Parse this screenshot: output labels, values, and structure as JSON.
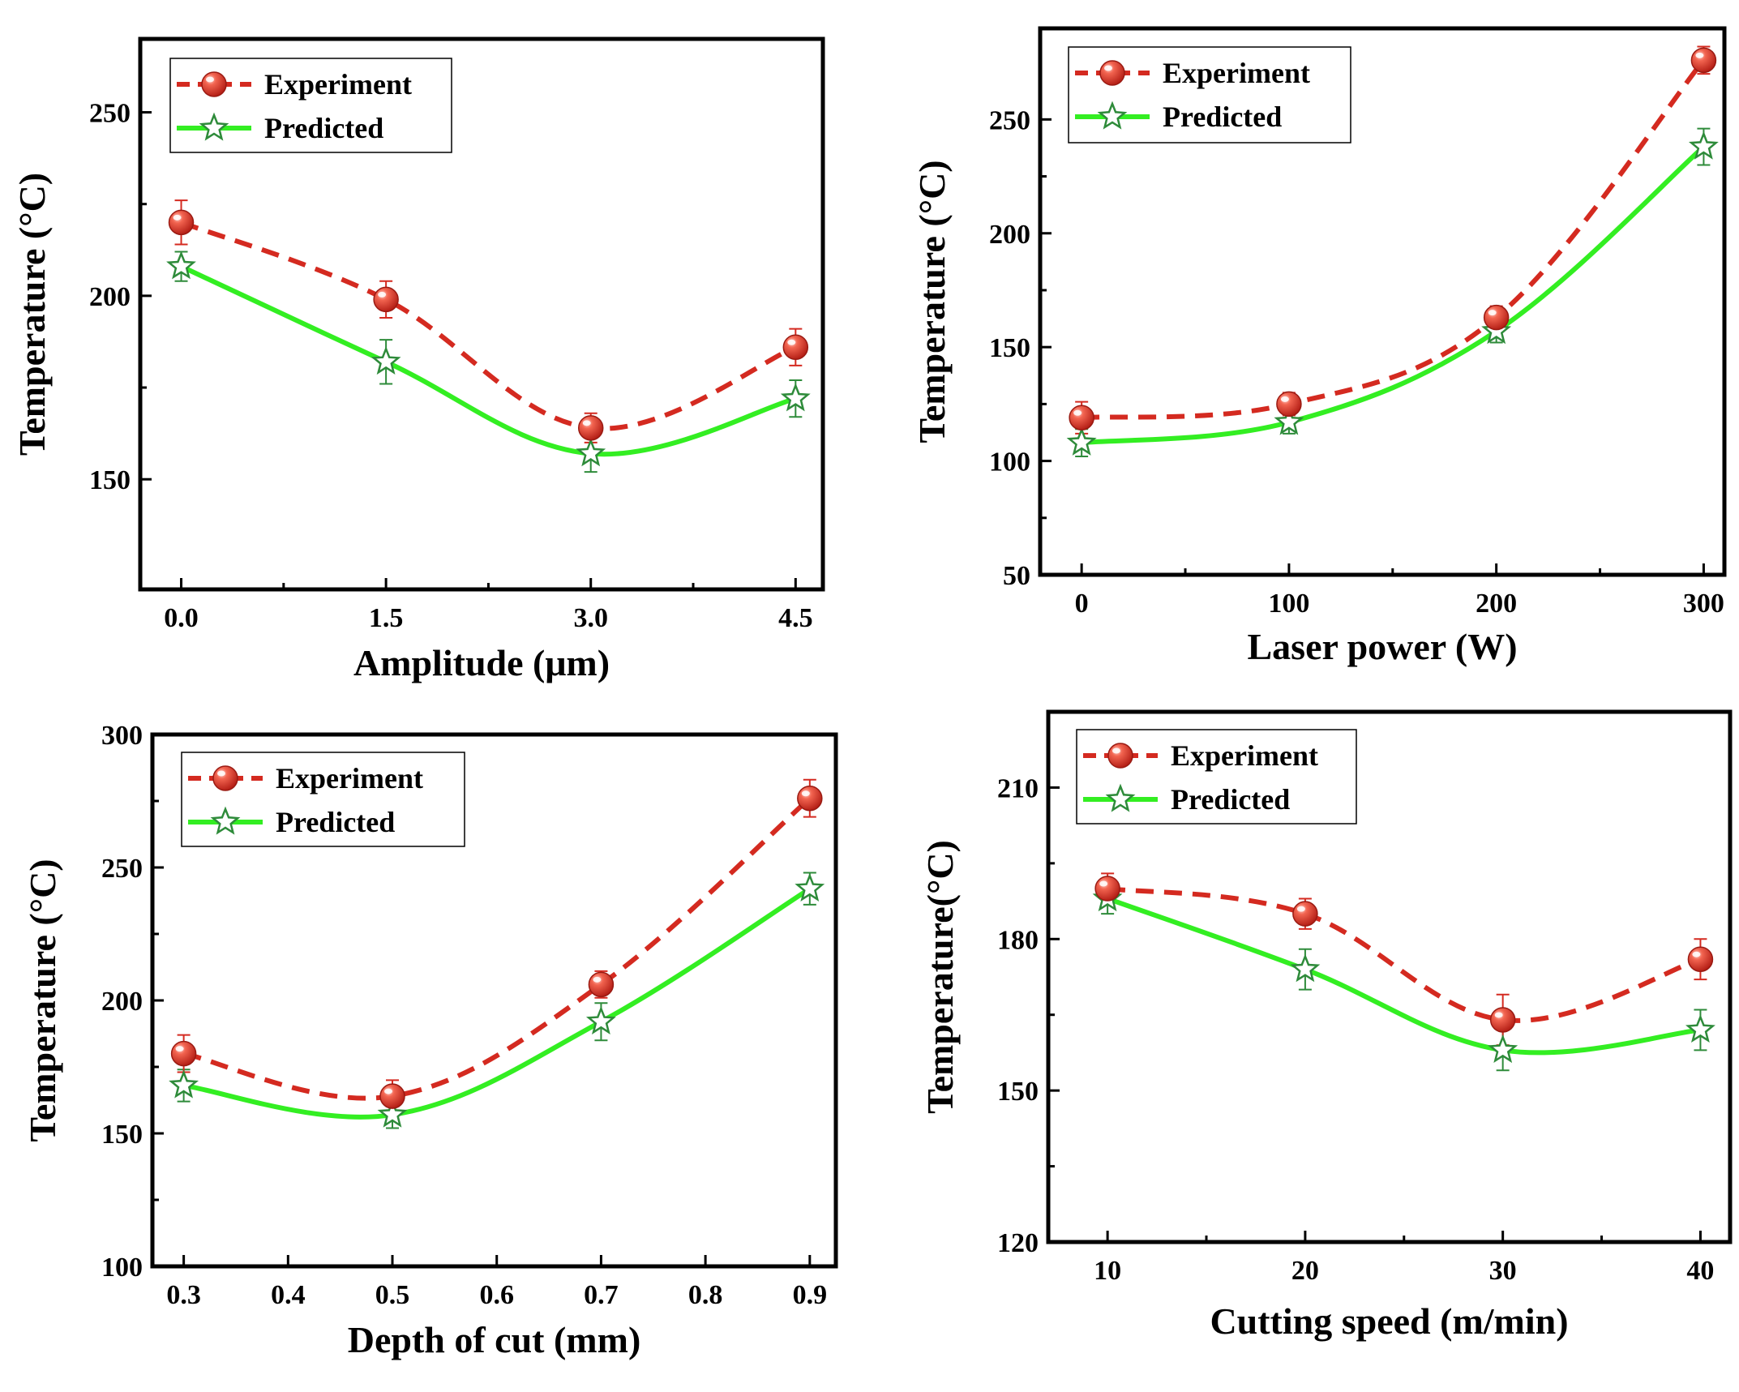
{
  "chart_data": [
    {
      "type": "line",
      "xlabel": "Amplitude (μm)",
      "ylabel": "Temperature (°C)",
      "xlim": [
        -0.3,
        4.7
      ],
      "ylim": [
        120,
        270
      ],
      "xticks": [
        0.0,
        1.5,
        3.0,
        4.5
      ],
      "xtick_labels": [
        "0.0",
        "1.5",
        "3.0",
        "4.5"
      ],
      "yticks": [
        150,
        200,
        250
      ],
      "ytick_labels": [
        "150",
        "200",
        "250"
      ],
      "legend_position": "top-left",
      "series": [
        {
          "name": "Experiment",
          "x": [
            0.0,
            1.5,
            3.0,
            4.5
          ],
          "values": [
            220,
            199,
            164,
            186
          ],
          "errors": [
            6,
            5,
            4,
            5
          ]
        },
        {
          "name": "Predicted",
          "x": [
            0.0,
            1.5,
            3.0,
            4.5
          ],
          "values": [
            208,
            182,
            157,
            172
          ],
          "errors": [
            4,
            6,
            5,
            5
          ]
        }
      ]
    },
    {
      "type": "line",
      "xlabel": "Laser power (W)",
      "ylabel": "Temperature (°C)",
      "xlim": [
        -20,
        310
      ],
      "ylim": [
        50,
        290
      ],
      "xticks": [
        0,
        100,
        200,
        300
      ],
      "xtick_labels": [
        "0",
        "100",
        "200",
        "300"
      ],
      "yticks": [
        50,
        100,
        150,
        200,
        250
      ],
      "ytick_labels": [
        "50",
        "100",
        "150",
        "200",
        "250"
      ],
      "legend_position": "top-left",
      "series": [
        {
          "name": "Experiment",
          "x": [
            0,
            100,
            200,
            300
          ],
          "values": [
            119,
            125,
            163,
            276
          ],
          "errors": [
            7,
            5,
            5,
            6
          ]
        },
        {
          "name": "Predicted",
          "x": [
            0,
            100,
            200,
            300
          ],
          "values": [
            108,
            117,
            157,
            238
          ],
          "errors": [
            6,
            5,
            5,
            8
          ]
        }
      ]
    },
    {
      "type": "line",
      "xlabel": "Depth of cut (mm)",
      "ylabel": "Temperature (°C)",
      "xlim": [
        0.27,
        0.925
      ],
      "ylim": [
        100,
        300
      ],
      "xticks": [
        0.3,
        0.4,
        0.5,
        0.6,
        0.7,
        0.8,
        0.9
      ],
      "xtick_labels": [
        "0.3",
        "0.4",
        "0.5",
        "0.6",
        "0.7",
        "0.8",
        "0.9"
      ],
      "yticks": [
        100,
        150,
        200,
        250,
        300
      ],
      "ytick_labels": [
        "100",
        "150",
        "200",
        "250",
        "300"
      ],
      "legend_position": "top-left",
      "series": [
        {
          "name": "Experiment",
          "x": [
            0.3,
            0.5,
            0.7,
            0.9
          ],
          "values": [
            180,
            164,
            206,
            276
          ],
          "errors": [
            7,
            6,
            5,
            7
          ]
        },
        {
          "name": "Predicted",
          "x": [
            0.3,
            0.5,
            0.7,
            0.9
          ],
          "values": [
            168,
            157,
            192,
            242
          ],
          "errors": [
            6,
            5,
            7,
            6
          ]
        }
      ]
    },
    {
      "type": "line",
      "xlabel": "Cutting speed (m/min)",
      "ylabel": "Temperature(°C)",
      "xlim": [
        7,
        41.5
      ],
      "ylim": [
        120,
        225
      ],
      "xticks": [
        10,
        20,
        30,
        40
      ],
      "xtick_labels": [
        "10",
        "20",
        "30",
        "40"
      ],
      "yticks": [
        120,
        150,
        180,
        210
      ],
      "ytick_labels": [
        "120",
        "150",
        "180",
        "210"
      ],
      "legend_position": "top-left",
      "series": [
        {
          "name": "Experiment",
          "x": [
            10,
            20,
            30,
            40
          ],
          "values": [
            190,
            185,
            164,
            176
          ],
          "errors": [
            3,
            3,
            5,
            4
          ]
        },
        {
          "name": "Predicted",
          "x": [
            10,
            20,
            30,
            40
          ],
          "values": [
            188,
            174,
            158,
            162
          ],
          "errors": [
            3,
            4,
            4,
            4
          ]
        }
      ]
    }
  ],
  "style": {
    "experiment_color": "#d42a20",
    "predicted_color": "#33ee22",
    "predicted_marker_color": "#2e8b3a",
    "axis_color": "#000000"
  }
}
